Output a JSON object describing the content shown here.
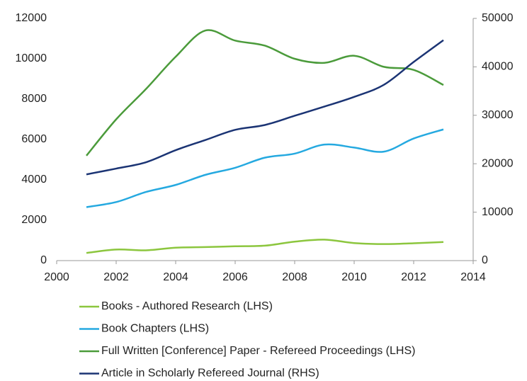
{
  "chart_data": {
    "type": "line",
    "x": [
      2001,
      2002,
      2003,
      2004,
      2005,
      2006,
      2007,
      2008,
      2009,
      2010,
      2011,
      2012,
      2013
    ],
    "xlim": [
      2000,
      2014
    ],
    "xticks": [
      2000,
      2002,
      2004,
      2006,
      2008,
      2010,
      2012,
      2014
    ],
    "ylim": [
      0,
      12000
    ],
    "yticks": [
      0,
      2000,
      4000,
      6000,
      8000,
      10000,
      12000
    ],
    "y2lim": [
      0,
      50000
    ],
    "y2ticks": [
      0,
      10000,
      20000,
      30000,
      40000,
      50000
    ],
    "smooth": true,
    "series": [
      {
        "name": "Books - Authored Research (LHS)",
        "color": "#8cc63e",
        "values": [
          380,
          550,
          510,
          640,
          670,
          710,
          740,
          940,
          1040,
          870,
          820,
          860,
          920
        ]
      },
      {
        "name": "Book Chapters (LHS)",
        "color": "#25a9e0",
        "values": [
          2650,
          2900,
          3400,
          3750,
          4250,
          4600,
          5100,
          5300,
          5750,
          5600,
          5400,
          6050,
          6500
        ]
      },
      {
        "name": "Full Written [Conference] Paper - Refereed Proceedings (LHS)",
        "color": "#4b9b3b",
        "values": [
          5200,
          7000,
          8500,
          10100,
          11400,
          10900,
          10650,
          10000,
          9800,
          10150,
          9600,
          9450,
          8700
        ]
      },
      {
        "name": "Article in Scholarly Refereed Journal (RHS)",
        "color": "#1b3474",
        "axis": "y2",
        "values": [
          17800,
          19000,
          20300,
          22800,
          24900,
          27000,
          28000,
          29900,
          31800,
          33800,
          36300,
          41000,
          45500
        ]
      }
    ]
  }
}
